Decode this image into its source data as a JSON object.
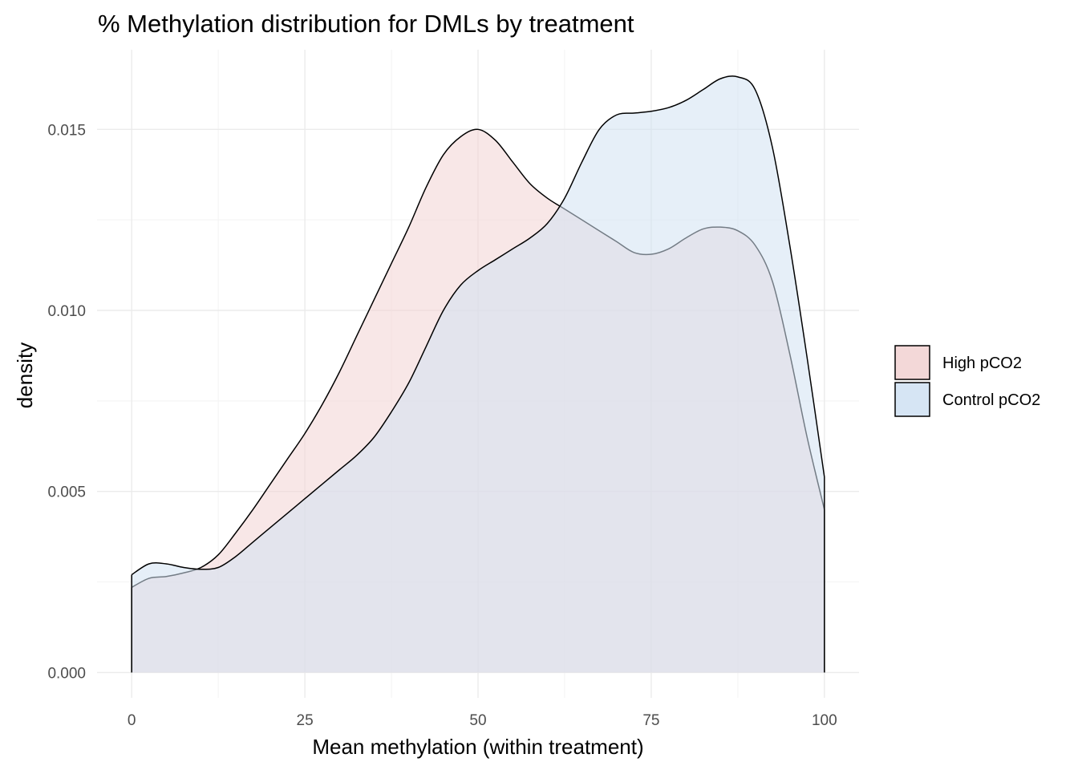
{
  "chart_data": {
    "type": "area",
    "title": "% Methylation distribution for DMLs by treatment",
    "xlabel": "Mean methylation (within treatment)",
    "ylabel": "density",
    "xlim": [
      -5,
      105
    ],
    "ylim": [
      -0.0007,
      0.0172
    ],
    "x_ticks": [
      0,
      25,
      50,
      75,
      100
    ],
    "x_tick_labels": [
      "0",
      "25",
      "50",
      "75",
      "100"
    ],
    "y_ticks": [
      0,
      0.005,
      0.01,
      0.015
    ],
    "y_tick_labels": [
      "0.000",
      "0.005",
      "0.010",
      "0.015"
    ],
    "grid": true,
    "legend_position": "right",
    "x": [
      0,
      2.5,
      5,
      7.5,
      10,
      12.5,
      15,
      17.5,
      20,
      22.5,
      25,
      27.5,
      30,
      32.5,
      35,
      37.5,
      40,
      42.5,
      45,
      47.5,
      50,
      52.5,
      55,
      57.5,
      60,
      62.5,
      65,
      67.5,
      70,
      72.5,
      75,
      77.5,
      80,
      82.5,
      85,
      87.5,
      90,
      92.5,
      95,
      97.5,
      100
    ],
    "series": [
      {
        "name": "High pCO2",
        "color": "#f2d4d4",
        "values": [
          0.00235,
          0.0026,
          0.00265,
          0.00275,
          0.0029,
          0.00325,
          0.00385,
          0.0045,
          0.0052,
          0.0059,
          0.0066,
          0.0074,
          0.0083,
          0.0093,
          0.0103,
          0.0113,
          0.0123,
          0.0134,
          0.0143,
          0.0148,
          0.015,
          0.0147,
          0.0141,
          0.0135,
          0.0131,
          0.0128,
          0.0125,
          0.0122,
          0.0119,
          0.0116,
          0.01155,
          0.0117,
          0.012,
          0.01225,
          0.0123,
          0.0122,
          0.0118,
          0.0108,
          0.0088,
          0.0065,
          0.0045
        ]
      },
      {
        "name": "Control pCO2",
        "color": "#d2e2f3",
        "values": [
          0.0027,
          0.003,
          0.003,
          0.0029,
          0.00285,
          0.0029,
          0.0032,
          0.0036,
          0.004,
          0.0044,
          0.0048,
          0.0052,
          0.0056,
          0.006,
          0.0065,
          0.0072,
          0.008,
          0.009,
          0.01,
          0.0107,
          0.0111,
          0.0114,
          0.0117,
          0.012,
          0.0124,
          0.0131,
          0.0141,
          0.015,
          0.0154,
          0.01545,
          0.0155,
          0.0156,
          0.0158,
          0.0161,
          0.0164,
          0.01645,
          0.0161,
          0.0145,
          0.0118,
          0.0087,
          0.0054
        ]
      }
    ]
  }
}
